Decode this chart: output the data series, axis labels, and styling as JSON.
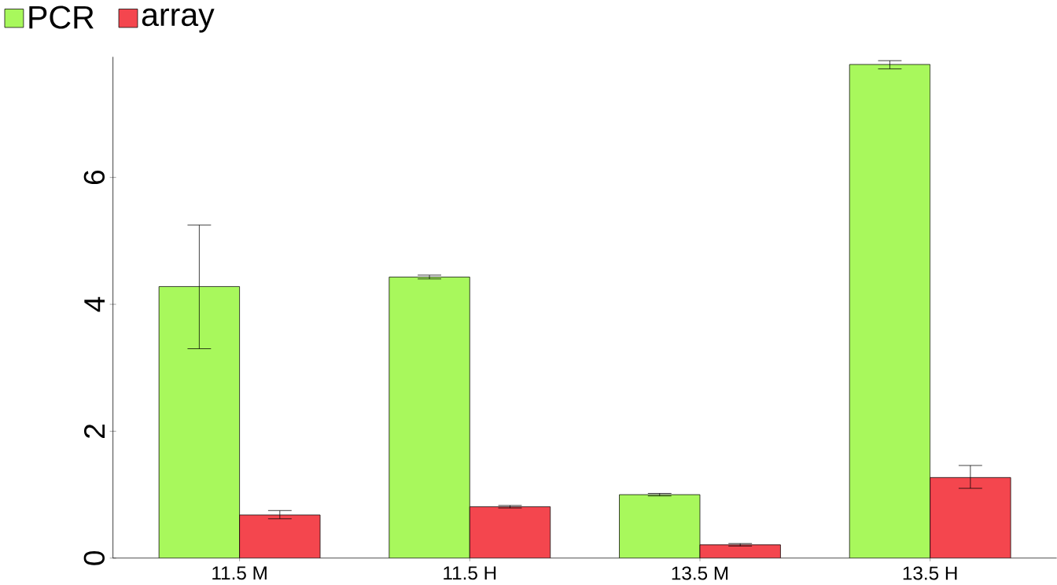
{
  "chart_data": {
    "type": "bar",
    "categories": [
      "11.5 M",
      "11.5 H",
      "13.5 M",
      "13.5 H"
    ],
    "series": [
      {
        "name": "PCR",
        "color": "#a8f85c",
        "values": [
          4.28,
          4.43,
          1.0,
          7.78
        ],
        "errors": [
          [
            3.3,
            5.25
          ],
          [
            4.4,
            4.46
          ],
          [
            0.98,
            1.02
          ],
          [
            7.71,
            7.84
          ]
        ]
      },
      {
        "name": "array",
        "color": "#f4464e",
        "values": [
          0.68,
          0.81,
          0.21,
          1.27
        ],
        "errors": [
          [
            0.62,
            0.75
          ],
          [
            0.79,
            0.83
          ],
          [
            0.19,
            0.23
          ],
          [
            1.1,
            1.46
          ]
        ]
      }
    ],
    "ylim": [
      0,
      7.9
    ],
    "yticks": [
      0,
      2,
      4,
      6
    ],
    "legend": "top left",
    "grid": false
  }
}
